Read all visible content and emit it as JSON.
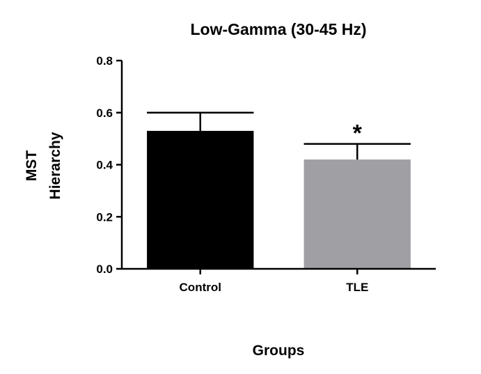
{
  "chart_data": {
    "type": "bar",
    "title": "Low-Gamma (30-45 Hz)",
    "xlabel": "Groups",
    "ylabel_lines": [
      "MST",
      "Hierarchy"
    ],
    "categories": [
      "Control",
      "TLE"
    ],
    "values": [
      0.53,
      0.42
    ],
    "errors": [
      0.07,
      0.06
    ],
    "colors": [
      "#000000",
      "#a0a0a4"
    ],
    "significance": [
      "",
      "*"
    ],
    "ylim": [
      0,
      0.8
    ],
    "yticks": [
      "0.0",
      "0.2",
      "0.4",
      "0.6",
      "0.8"
    ],
    "grid": false
  }
}
